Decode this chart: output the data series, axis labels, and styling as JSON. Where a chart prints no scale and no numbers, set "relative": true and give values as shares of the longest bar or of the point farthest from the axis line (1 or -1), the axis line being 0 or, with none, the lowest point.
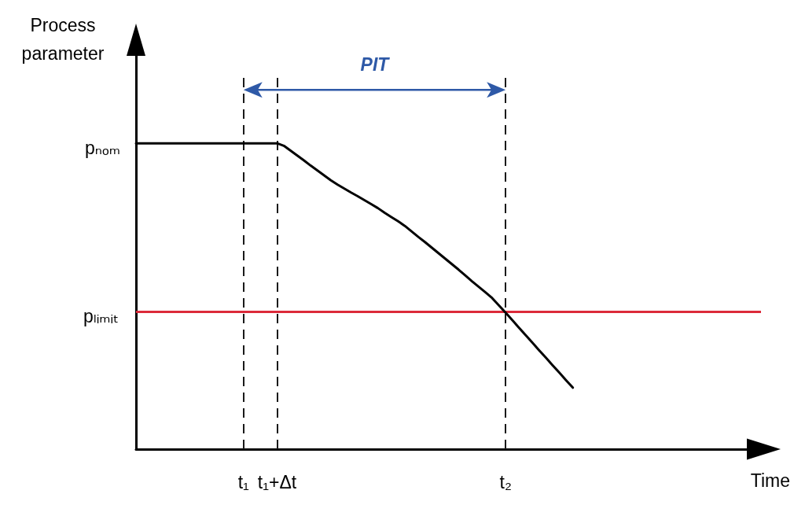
{
  "chart_data": {
    "type": "line",
    "relative": true,
    "xlabel": "Time",
    "ylabel": "Process parameter",
    "categories": [
      null,
      null,
      null,
      null,
      null,
      null,
      null,
      null,
      null,
      null,
      null,
      null,
      null,
      null,
      null,
      null,
      "t₁",
      null,
      null,
      null,
      null,
      "t₁+Δt",
      null,
      null,
      null,
      null,
      null,
      null,
      null,
      null,
      null,
      null,
      null,
      null,
      null,
      null,
      null,
      null,
      null,
      null,
      null,
      null,
      null,
      null,
      null,
      null,
      null,
      null,
      null,
      null,
      null,
      null,
      null,
      null,
      null,
      "t₂",
      null,
      null,
      null,
      null,
      null,
      null,
      null,
      null,
      null,
      null,
      null,
      null,
      null,
      null,
      null,
      null,
      null,
      null,
      null,
      null,
      null,
      null,
      null,
      null,
      null,
      null,
      null,
      null,
      null,
      null,
      null,
      null,
      null,
      null,
      null,
      null,
      null,
      null
    ],
    "series": [
      {
        "color": "#000000",
        "values": [
          1,
          1,
          1,
          1,
          1,
          1,
          1,
          1,
          1,
          1,
          1,
          1,
          1,
          1,
          1,
          1,
          1,
          1,
          1,
          1,
          1,
          1,
          0.992,
          0.976,
          0.96,
          0.944,
          0.927,
          0.911,
          0.895,
          0.879,
          0.865,
          0.852,
          0.839,
          0.827,
          0.814,
          0.801,
          0.788,
          0.773,
          0.759,
          0.745,
          0.73,
          0.712,
          0.694,
          0.677,
          0.659,
          0.641,
          0.623,
          0.605,
          0.587,
          0.568,
          0.549,
          0.531,
          0.513,
          0.494,
          0.47,
          0.446,
          0.422,
          0.397,
          0.372,
          0.348,
          0.323,
          0.299,
          0.274,
          0.25,
          0.225,
          0.201,
          null,
          null,
          null,
          null,
          null,
          null,
          null,
          null,
          null,
          null,
          null,
          null,
          null,
          null,
          null,
          null,
          null,
          null,
          null,
          null,
          null,
          null,
          null,
          null,
          null,
          null,
          null,
          null
        ]
      }
    ],
    "ref_lines": [
      {
        "axis": "x",
        "value": "t₁",
        "color": "#1a1a1a",
        "line_style": "dashed"
      },
      {
        "axis": "x",
        "value": "t₁+Δt",
        "color": "#1a1a1a",
        "line_style": "dashed"
      },
      {
        "axis": "x",
        "value": "t₂",
        "color": "#1a1a1a",
        "line_style": "dashed"
      },
      {
        "axis": "y",
        "value": 0.446,
        "label": "pₗᵢₘᵢₜ",
        "color": "#dc2a3a",
        "line_style": "solid"
      }
    ],
    "annotations": [
      "pₙₒₘ",
      "PIT"
    ]
  }
}
